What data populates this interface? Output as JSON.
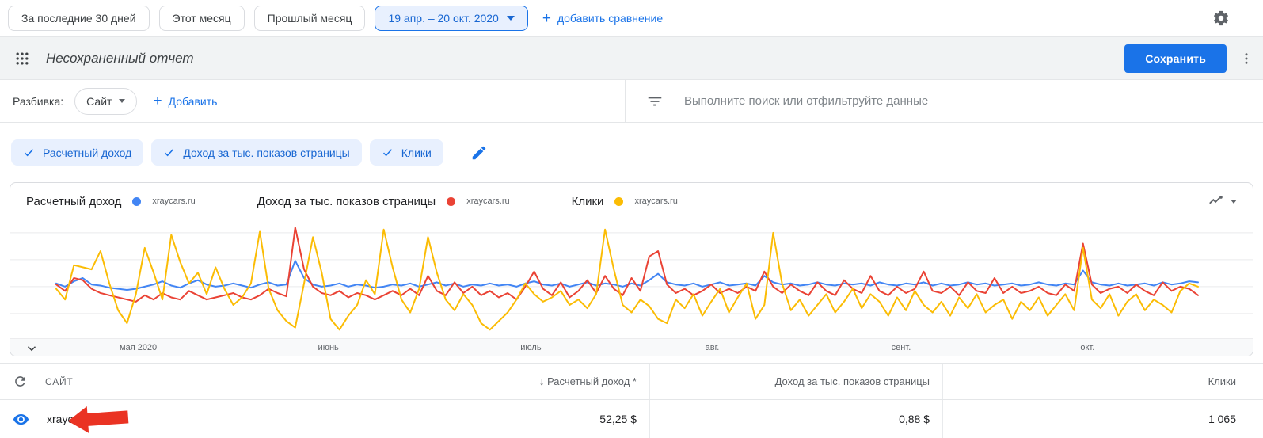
{
  "toolbar": {
    "range_buttons": [
      "За последние 30 дней",
      "Этот месяц",
      "Прошлый месяц"
    ],
    "date_range": "19 апр. – 20 окт. 2020",
    "add_comparison": "добавить сравнение"
  },
  "report_bar": {
    "title": "Несохраненный отчет",
    "save_button": "Сохранить"
  },
  "controls": {
    "breakdown_label": "Разбивка:",
    "breakdown_value": "Сайт",
    "add_button": "Добавить",
    "search_placeholder": "Выполните поиск или отфильтруйте данные"
  },
  "metric_chips": [
    "Расчетный доход",
    "Доход за тыс. показов страницы",
    "Клики"
  ],
  "icons": {
    "plus": "+",
    "gear": "settings-gear",
    "apps": "3x3-dot-grid",
    "kebab": "vertical-three-dots",
    "filter": "filter-lines",
    "pencil": "edit-pencil",
    "chart_type": "line-chart-glyph",
    "eye": "visibility-eye",
    "reset": "circular-arrow",
    "red_arrow_annotation_color": "#EA3323"
  },
  "accent_colors": {
    "primary_blue": "#1A73E8",
    "chip_bg": "#E8F0FE",
    "chip_text": "#1967D2"
  },
  "chart_data": {
    "type": "line",
    "title": "",
    "x_range_label": "19 апр. – 20 окт. 2020",
    "ylim": [
      0,
      100
    ],
    "grid": true,
    "grid_values": [
      17,
      42,
      67,
      92
    ],
    "legend_position": "top",
    "legend": [
      {
        "metric": "Расчетный доход",
        "site": "xraycars.ru",
        "color": "#4285F4"
      },
      {
        "metric": "Доход за тыс. показов страницы",
        "site": "xraycars.ru",
        "color": "#EA4335"
      },
      {
        "metric": "Клики",
        "site": "xraycars.ru",
        "color": "#FBBC04"
      }
    ],
    "x_labels": [
      {
        "label": "мая 2020",
        "pos": 0.103
      },
      {
        "label": "июнь",
        "pos": 0.256
      },
      {
        "label": "июль",
        "pos": 0.419
      },
      {
        "label": "авг.",
        "pos": 0.565
      },
      {
        "label": "сент.",
        "pos": 0.717
      },
      {
        "label": "окт.",
        "pos": 0.867
      }
    ],
    "series": [
      {
        "name": "Расчетный доход",
        "color": "#4285F4",
        "values": [
          45,
          42,
          47,
          50,
          44,
          43,
          41,
          40,
          39,
          40,
          42,
          44,
          47,
          43,
          41,
          45,
          48,
          44,
          42,
          43,
          45,
          43,
          41,
          44,
          46,
          43,
          44,
          66,
          50,
          44,
          42,
          43,
          45,
          42,
          44,
          43,
          41,
          42,
          44,
          43,
          45,
          42,
          44,
          46,
          43,
          45,
          42,
          44,
          43,
          45,
          43,
          44,
          42,
          45,
          47,
          44,
          43,
          45,
          42,
          44,
          46,
          43,
          45,
          44,
          42,
          45,
          43,
          48,
          54,
          46,
          44,
          43,
          45,
          42,
          44,
          46,
          43,
          44,
          45,
          43,
          52,
          46,
          44,
          45,
          43,
          44,
          46,
          44,
          43,
          45,
          44,
          45,
          43,
          46,
          44,
          43,
          45,
          44,
          46,
          43,
          45,
          43,
          44,
          46,
          44,
          45,
          43,
          44,
          45,
          43,
          44,
          46,
          44,
          43,
          45,
          44,
          57,
          46,
          44,
          43,
          45,
          43,
          44,
          45,
          43,
          46,
          44,
          45,
          47,
          46
        ]
      },
      {
        "name": "Доход за тыс. показов страницы",
        "color": "#EA4335",
        "values": [
          44,
          38,
          50,
          48,
          40,
          36,
          34,
          32,
          30,
          28,
          34,
          30,
          36,
          32,
          30,
          38,
          34,
          30,
          32,
          34,
          36,
          32,
          30,
          34,
          40,
          36,
          33,
          97,
          58,
          42,
          36,
          34,
          38,
          32,
          36,
          34,
          30,
          34,
          38,
          34,
          40,
          34,
          52,
          38,
          34,
          46,
          36,
          42,
          34,
          38,
          32,
          36,
          30,
          42,
          56,
          40,
          34,
          46,
          32,
          38,
          48,
          36,
          52,
          40,
          34,
          50,
          38,
          70,
          75,
          44,
          36,
          40,
          34,
          38,
          44,
          36,
          40,
          36,
          42,
          38,
          56,
          42,
          36,
          44,
          38,
          34,
          46,
          38,
          34,
          48,
          40,
          36,
          52,
          38,
          34,
          42,
          36,
          40,
          56,
          38,
          36,
          42,
          34,
          46,
          38,
          36,
          50,
          36,
          42,
          36,
          38,
          42,
          36,
          34,
          44,
          38,
          82,
          44,
          36,
          40,
          42,
          36,
          44,
          38,
          34,
          46,
          38,
          42,
          40,
          34
        ]
      },
      {
        "name": "Клики",
        "color": "#FBBC04",
        "values": [
          40,
          30,
          62,
          60,
          58,
          75,
          45,
          20,
          8,
          35,
          78,
          55,
          30,
          90,
          65,
          45,
          55,
          35,
          60,
          40,
          25,
          32,
          45,
          93,
          40,
          20,
          10,
          4,
          45,
          88,
          55,
          12,
          2,
          15,
          25,
          48,
          35,
          95,
          60,
          30,
          18,
          40,
          88,
          55,
          30,
          20,
          35,
          25,
          8,
          2,
          10,
          18,
          30,
          45,
          35,
          28,
          32,
          38,
          25,
          30,
          22,
          35,
          95,
          58,
          25,
          18,
          30,
          24,
          12,
          8,
          30,
          22,
          35,
          15,
          28,
          40,
          18,
          32,
          45,
          12,
          25,
          92,
          45,
          20,
          30,
          15,
          25,
          35,
          18,
          28,
          40,
          22,
          35,
          28,
          15,
          32,
          20,
          38,
          25,
          18,
          28,
          15,
          32,
          22,
          35,
          18,
          25,
          30,
          12,
          28,
          20,
          32,
          15,
          25,
          35,
          20,
          78,
          30,
          22,
          35,
          15,
          28,
          35,
          20,
          30,
          25,
          18,
          38,
          45,
          42
        ]
      }
    ]
  },
  "table": {
    "columns": [
      "САЙТ",
      "↓ Расчетный доход *",
      "Доход за тыс. показов страницы",
      "Клики"
    ],
    "rows": [
      {
        "site": "xraycars.ru",
        "estimated_revenue": "52,25 $",
        "revenue_per_thousand": "0,88 $",
        "clicks": "1 065"
      }
    ]
  }
}
